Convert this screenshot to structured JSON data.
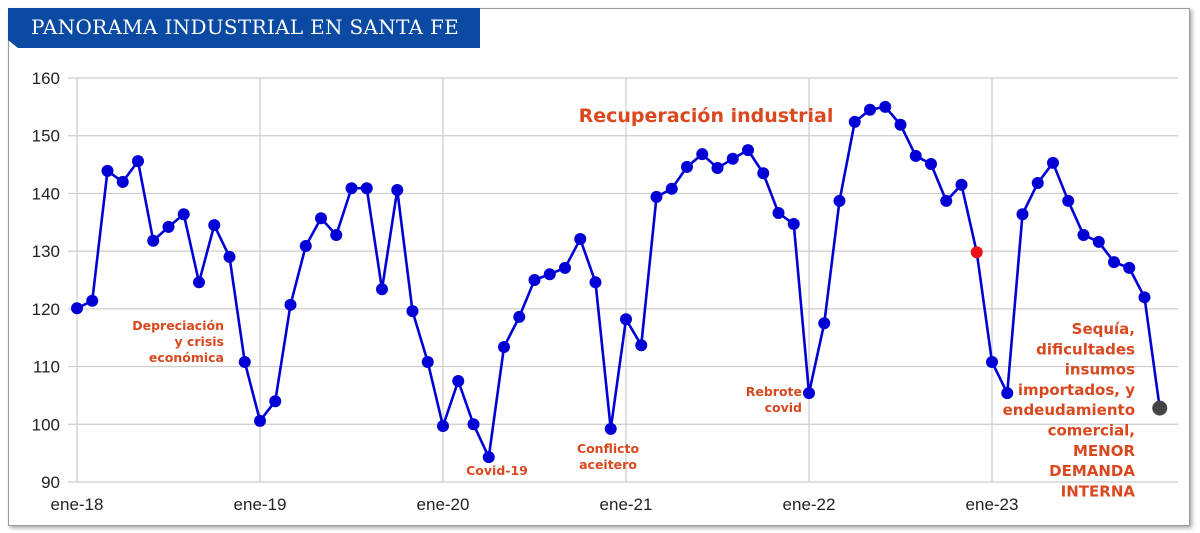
{
  "header": {
    "title": "PANORAMA INDUSTRIAL EN SANTA FE"
  },
  "colors": {
    "banner": "#0b4aa2",
    "line": "#0000d6",
    "highlight": "#e8141a",
    "last": "#444444",
    "annotation": "#d9481e",
    "grid": "#cccccc"
  },
  "chart_data": {
    "type": "line",
    "title": "PANORAMA INDUSTRIAL EN SANTA FE",
    "xlabel": "",
    "ylabel": "",
    "ylim": [
      90,
      160
    ],
    "yticks": [
      "90",
      "100",
      "110",
      "120",
      "130",
      "140",
      "150",
      "160"
    ],
    "xticks": [
      "ene-18",
      "ene-19",
      "ene-20",
      "ene-21",
      "ene-22",
      "ene-23"
    ],
    "grid": true,
    "x_start": "ene-18",
    "x_end": "dic-23",
    "frequency": "monthly",
    "values": [
      120.1,
      121.4,
      143.9,
      142.0,
      145.6,
      131.8,
      134.2,
      136.4,
      124.6,
      134.5,
      129.0,
      110.8,
      100.6,
      104.0,
      120.7,
      130.9,
      135.7,
      132.8,
      140.9,
      140.9,
      123.4,
      140.6,
      119.6,
      110.8,
      99.7,
      107.5,
      100.0,
      94.3,
      113.4,
      118.6,
      125.0,
      126.0,
      127.1,
      132.1,
      124.6,
      99.2,
      118.2,
      113.7,
      139.4,
      140.8,
      144.6,
      146.8,
      144.4,
      146.0,
      147.5,
      143.5,
      136.6,
      134.7,
      105.4,
      117.5,
      138.7,
      152.4,
      154.5,
      155.0,
      151.9,
      146.5,
      145.1,
      138.7,
      141.5,
      129.8,
      110.8,
      105.4,
      136.4,
      141.8,
      145.3,
      138.7,
      132.8,
      131.6,
      128.1,
      127.1,
      122.0,
      102.8
    ],
    "highlighted_points": [
      {
        "month": "dic-22",
        "value": 129.8,
        "color": "#e8141a"
      },
      {
        "month": "dic-23",
        "value": 102.8,
        "color": "#444444"
      }
    ],
    "annotations": [
      {
        "lines": [
          "Recuperación  industrial"
        ],
        "size": "large"
      },
      {
        "lines": [
          "Depreciación",
          "y crisis",
          "económica"
        ]
      },
      {
        "lines": [
          "Covid-19"
        ]
      },
      {
        "lines": [
          "Conflicto",
          "aceitero"
        ]
      },
      {
        "lines": [
          "Rebrote",
          "covid"
        ]
      },
      {
        "lines": [
          "Sequía,",
          "dificultades",
          "insumos",
          "importados, y",
          "endeudamiento",
          "comercial,",
          "MENOR",
          "DEMANDA",
          "INTERNA"
        ]
      }
    ]
  }
}
